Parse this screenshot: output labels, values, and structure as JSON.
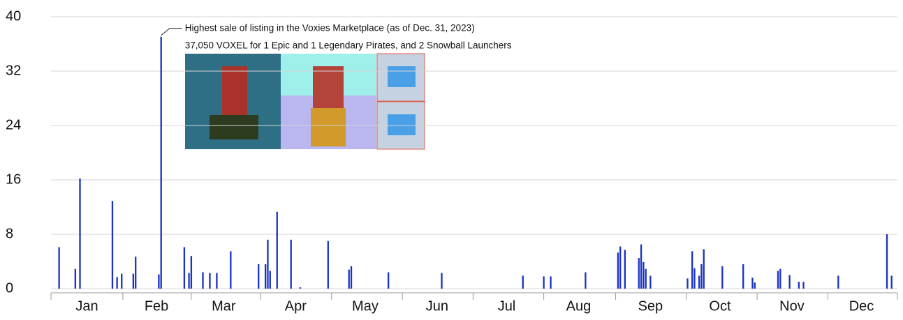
{
  "chart_data": {
    "type": "bar",
    "annotation": [
      "Highest sale of listing in the Voxies Marketplace (as of Dec. 31, 2023)",
      "37,050 VOXEL for 1 Epic and 1 Legendary Pirates, and 2 Snowball Launchers"
    ],
    "annotation_index": 47,
    "color": "#1b33c4",
    "ylim": [
      0,
      40
    ],
    "yticks": [
      0,
      8,
      16,
      24,
      32,
      40
    ],
    "grid": true,
    "categories": [
      null,
      null,
      null,
      null,
      null,
      null,
      null,
      null,
      null,
      null,
      null,
      null,
      null,
      null,
      null,
      "Jan",
      null,
      null,
      null,
      null,
      null,
      null,
      null,
      null,
      null,
      null,
      null,
      null,
      null,
      null,
      null,
      null,
      null,
      null,
      null,
      null,
      null,
      null,
      null,
      null,
      null,
      null,
      null,
      null,
      null,
      "Feb",
      null,
      null,
      null,
      null,
      null,
      null,
      null,
      null,
      null,
      null,
      null,
      null,
      null,
      null,
      null,
      null,
      null,
      null,
      null,
      null,
      null,
      null,
      null,
      null,
      null,
      null,
      null,
      null,
      "Mar",
      null,
      null,
      null,
      null,
      null,
      null,
      null,
      null,
      null,
      null,
      null,
      null,
      null,
      null,
      null,
      null,
      null,
      null,
      null,
      null,
      null,
      null,
      null,
      null,
      null,
      null,
      null,
      null,
      null,
      null,
      "Apr",
      null,
      null,
      null,
      null,
      null,
      null,
      null,
      null,
      null,
      null,
      null,
      null,
      null,
      null,
      null,
      null,
      null,
      null,
      null,
      null,
      null,
      null,
      null,
      null,
      null,
      null,
      null,
      null,
      null,
      "May",
      null,
      null,
      null,
      null,
      null,
      null,
      null,
      null,
      null,
      null,
      null,
      null,
      null,
      null,
      null,
      null,
      null,
      null,
      null,
      null,
      null,
      null,
      null,
      null,
      null,
      null,
      null,
      null,
      null,
      null,
      "Jun",
      null,
      null,
      null,
      null,
      null,
      null,
      null,
      null,
      null,
      null,
      null,
      null,
      null,
      null,
      null,
      null,
      null,
      null,
      null,
      null,
      null,
      null,
      null,
      null,
      null,
      null,
      null,
      null,
      null,
      "Jul",
      null,
      null,
      null,
      null,
      null,
      null,
      null,
      null,
      null,
      null,
      null,
      null,
      null,
      null,
      null,
      null,
      null,
      null,
      null,
      null,
      null,
      null,
      null,
      null,
      null,
      null,
      null,
      null,
      null,
      null,
      "Aug",
      null,
      null,
      null,
      null,
      null,
      null,
      null,
      null,
      null,
      null,
      null,
      null,
      null,
      null,
      null,
      null,
      null,
      null,
      null,
      null,
      null,
      null,
      null,
      null,
      null,
      null,
      null,
      null,
      null,
      null,
      "Sep",
      null,
      null,
      null,
      null,
      null,
      null,
      null,
      null,
      null,
      null,
      null,
      null,
      null,
      null,
      null,
      null,
      null,
      null,
      null,
      null,
      null,
      null,
      null,
      null,
      null,
      null,
      null,
      null,
      null,
      "Oct",
      null,
      null,
      null,
      null,
      null,
      null,
      null,
      null,
      null,
      null,
      null,
      null,
      null,
      null,
      null,
      null,
      null,
      null,
      null,
      null,
      null,
      null,
      null,
      null,
      null,
      null,
      null,
      null,
      null,
      null,
      "Nov",
      null,
      null,
      null,
      null,
      null,
      null,
      null,
      null,
      null,
      null,
      null,
      null,
      null,
      null,
      null,
      null,
      null,
      null,
      null,
      null,
      null,
      null,
      null,
      null,
      null,
      null,
      null,
      null,
      null,
      "Dec",
      null,
      null,
      null,
      null,
      null,
      null,
      null,
      null,
      null,
      null,
      null,
      null,
      null,
      null,
      null
    ],
    "values": [
      0,
      0,
      0,
      6.1,
      0,
      0,
      0,
      0,
      0,
      0,
      2.9,
      0,
      16.2,
      0,
      0,
      0,
      0,
      0,
      0,
      0,
      0,
      0,
      0,
      0,
      0,
      0,
      12.9,
      0,
      1.7,
      0,
      2.2,
      0,
      0,
      0,
      0,
      2.2,
      4.7,
      0,
      0,
      0,
      0,
      0,
      0,
      0,
      0,
      0,
      2.1,
      37.05,
      0,
      0,
      0,
      0,
      0,
      0,
      0,
      0,
      0,
      6.1,
      0,
      2.3,
      4.8,
      0,
      0,
      0,
      0,
      2.4,
      0,
      0,
      2.3,
      0,
      0,
      2.3,
      0,
      0,
      0,
      0,
      0,
      5.5,
      0,
      0,
      0,
      0,
      0,
      0,
      0,
      0,
      0,
      0,
      0,
      3.6,
      0,
      0,
      3.6,
      7.2,
      2.6,
      0,
      0,
      11.3,
      0,
      0,
      0,
      0,
      0,
      7.2,
      0,
      0,
      0,
      0.2,
      0,
      0,
      0,
      0,
      0,
      0,
      0,
      0,
      0,
      0,
      0,
      7.0,
      0,
      0,
      0,
      0,
      0,
      0,
      0,
      0,
      2.8,
      3.3,
      0,
      0,
      0,
      0,
      0,
      0,
      0,
      0,
      0,
      0,
      0,
      0,
      0,
      0,
      0,
      2.4,
      0,
      0,
      0,
      0,
      0,
      0,
      0,
      0,
      0,
      0,
      0,
      0,
      0,
      0,
      0,
      0,
      0,
      0,
      0,
      0,
      0,
      0,
      2.3,
      0,
      0,
      0,
      0,
      0,
      0,
      0,
      0,
      0,
      0,
      0,
      0,
      0,
      0,
      0,
      0,
      0,
      0,
      0,
      0,
      0,
      0,
      0,
      0,
      0,
      0,
      0,
      0,
      0,
      0,
      0,
      0,
      0,
      0,
      1.9,
      0,
      0,
      0,
      0,
      0,
      0,
      0,
      0,
      1.8,
      0,
      0,
      1.8,
      0,
      0,
      0,
      0,
      0,
      0,
      0,
      0,
      0,
      0,
      0,
      0,
      0,
      0,
      2.4,
      0,
      0,
      0,
      0,
      0,
      0,
      0,
      0,
      0,
      0,
      0,
      0,
      0,
      5.3,
      6.2,
      0,
      5.7,
      0,
      0,
      0,
      0,
      0,
      4.5,
      6.5,
      3.9,
      2.9,
      0,
      1.9,
      0,
      0,
      0,
      0,
      0,
      0,
      0,
      0,
      0,
      0,
      0,
      0,
      0,
      0,
      0,
      1.5,
      0,
      5.5,
      3.0,
      0,
      1.9,
      3.6,
      5.8,
      0,
      0,
      0,
      0,
      0,
      0,
      0,
      3.3,
      0,
      0,
      0,
      0,
      0,
      0,
      0,
      0,
      3.6,
      0,
      0,
      0,
      1.6,
      0.9,
      0,
      0,
      0,
      0,
      0,
      0,
      0,
      0,
      0,
      2.6,
      2.9,
      0,
      0,
      0,
      2.0,
      0,
      0,
      0,
      1.0,
      0,
      1.0,
      0,
      0,
      0,
      0,
      0,
      0,
      0,
      0,
      0,
      0,
      0,
      0,
      0,
      0,
      1.9,
      0,
      0,
      0,
      0,
      0,
      0,
      0,
      0,
      0,
      0,
      0,
      0,
      0,
      0,
      0,
      0,
      0,
      0,
      0,
      0,
      8.0,
      0,
      1.9,
      0,
      0
    ]
  }
}
